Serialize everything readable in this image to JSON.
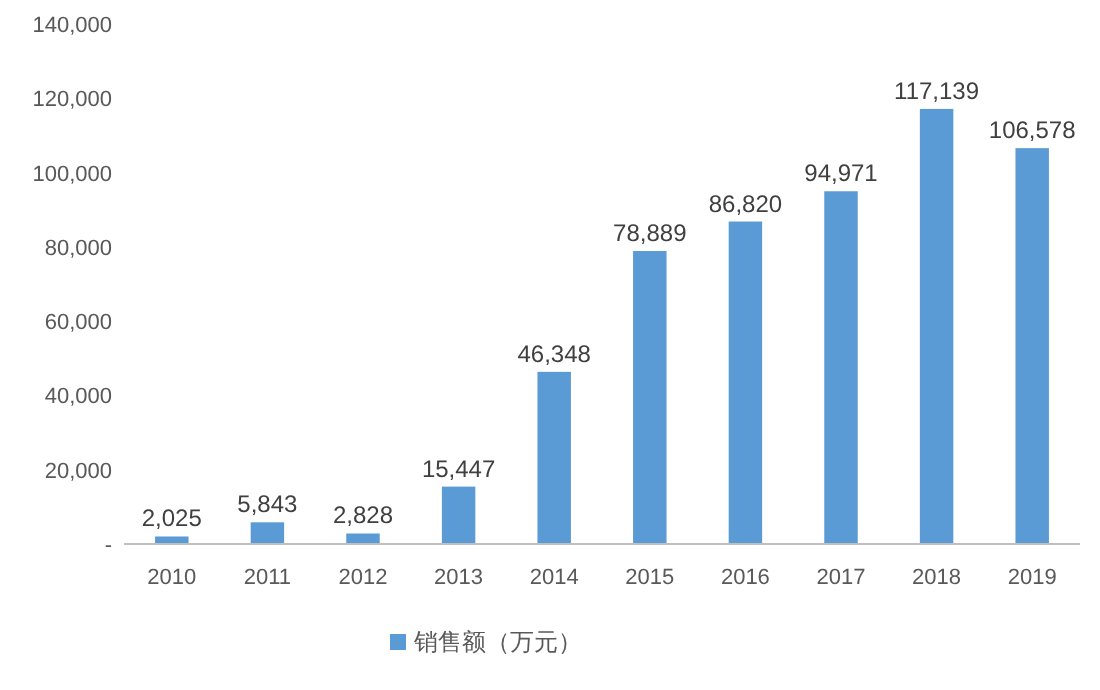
{
  "chart_data": {
    "type": "bar",
    "categories": [
      "2010",
      "2011",
      "2012",
      "2013",
      "2014",
      "2015",
      "2016",
      "2017",
      "2018",
      "2019"
    ],
    "series": [
      {
        "name": "销售额（万元）",
        "color": "#5b9bd5",
        "values": [
          2025,
          5843,
          2828,
          15447,
          46348,
          78889,
          86820,
          94971,
          117139,
          106578
        ],
        "value_labels": [
          "2,025",
          "5,843",
          "2,828",
          "15,447",
          "46,348",
          "78,889",
          "86,820",
          "94,971",
          "117,139",
          "106,578"
        ]
      }
    ],
    "ylim": [
      0,
      140000
    ],
    "yticks": [
      {
        "value": 0,
        "label": "-"
      },
      {
        "value": 20000,
        "label": "20,000"
      },
      {
        "value": 40000,
        "label": "40,000"
      },
      {
        "value": 60000,
        "label": "60,000"
      },
      {
        "value": 80000,
        "label": "80,000"
      },
      {
        "value": 100000,
        "label": "100,000"
      },
      {
        "value": 120000,
        "label": "120,000"
      },
      {
        "value": 140000,
        "label": "140,000"
      }
    ],
    "grid": false,
    "legend": "bottom"
  }
}
